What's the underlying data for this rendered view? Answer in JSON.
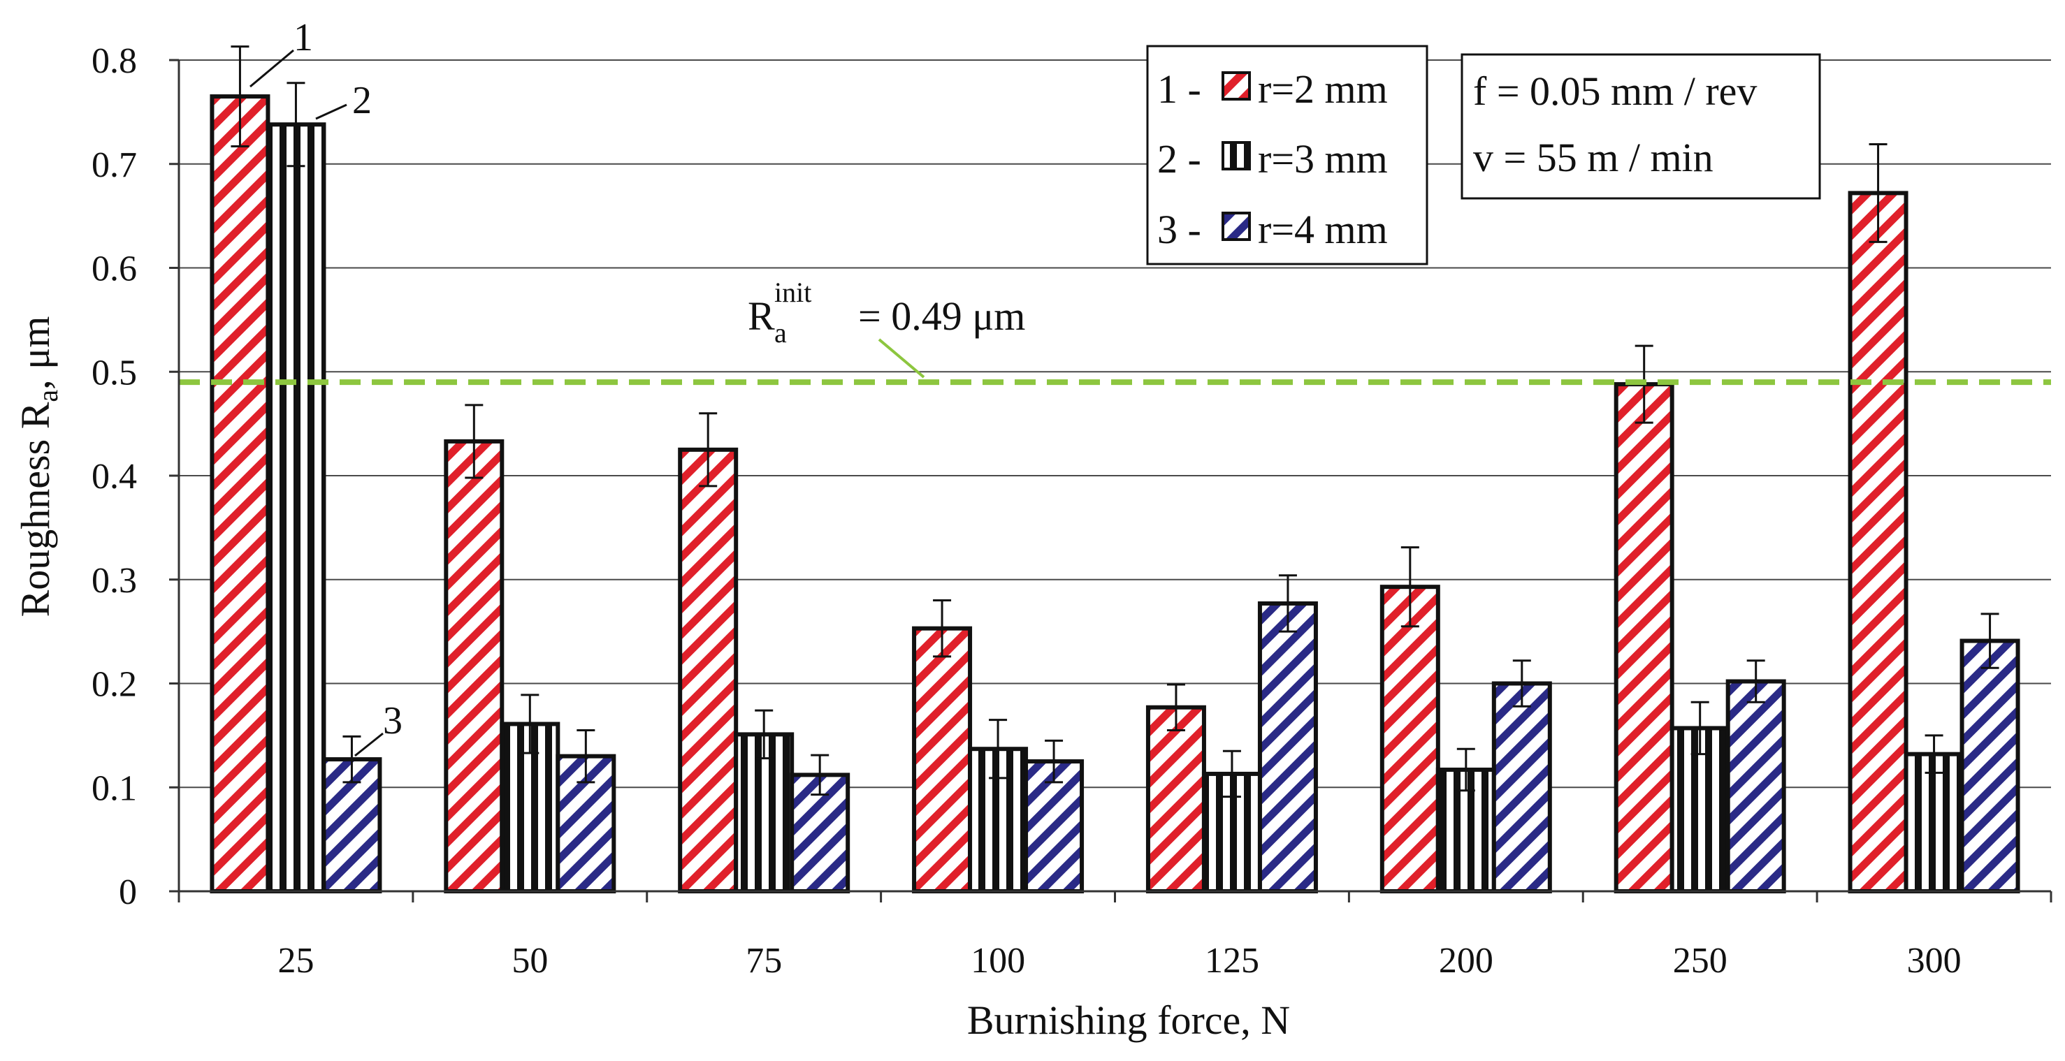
{
  "chart_data": {
    "type": "bar",
    "title": "",
    "xlabel": "Burnishing force, N",
    "ylabel": {
      "main": "Roughness R",
      "sub": "a",
      "unit": ", μm"
    },
    "ylim": [
      0,
      0.8
    ],
    "yticks": [
      "0",
      "0.1",
      "0.2",
      "0.3",
      "0.4",
      "0.5",
      "0.6",
      "0.7",
      "0.8"
    ],
    "grid": true,
    "legend_position": "top-right",
    "categories": [
      "25",
      "50",
      "75",
      "100",
      "125",
      "200",
      "250",
      "300"
    ],
    "series": [
      {
        "id": "1",
        "name": "r=2 mm",
        "legend_label": "1 -",
        "pattern": "diagonal-hatch",
        "color": "#e0202a",
        "values": [
          0.765,
          0.433,
          0.425,
          0.253,
          0.177,
          0.293,
          0.488,
          0.672
        ],
        "errors": [
          0.048,
          0.035,
          0.035,
          0.027,
          0.022,
          0.038,
          0.037,
          0.047
        ]
      },
      {
        "id": "2",
        "name": "r=3 mm",
        "legend_label": "2 -",
        "pattern": "vertical-stripes",
        "color": "#111111",
        "values": [
          0.738,
          0.161,
          0.151,
          0.137,
          0.113,
          0.117,
          0.157,
          0.132
        ],
        "errors": [
          0.04,
          0.028,
          0.023,
          0.028,
          0.022,
          0.02,
          0.025,
          0.018
        ]
      },
      {
        "id": "3",
        "name": "r=4 mm",
        "legend_label": "3 -",
        "pattern": "diagonal-hatch",
        "color": "#2a2a86",
        "values": [
          0.127,
          0.13,
          0.112,
          0.125,
          0.277,
          0.2,
          0.202,
          0.241
        ],
        "errors": [
          0.022,
          0.025,
          0.019,
          0.02,
          0.027,
          0.022,
          0.02,
          0.026
        ]
      }
    ],
    "reference_line": {
      "value": 0.49,
      "symbol": "R",
      "subscript": "a",
      "superscript": "init",
      "text": "= 0.49 μm",
      "color": "#8dc63f"
    },
    "series_tags": [
      "1",
      "2",
      "3"
    ],
    "parameters": [
      "f = 0.05 mm / rev",
      "v = 55 m / min"
    ]
  }
}
